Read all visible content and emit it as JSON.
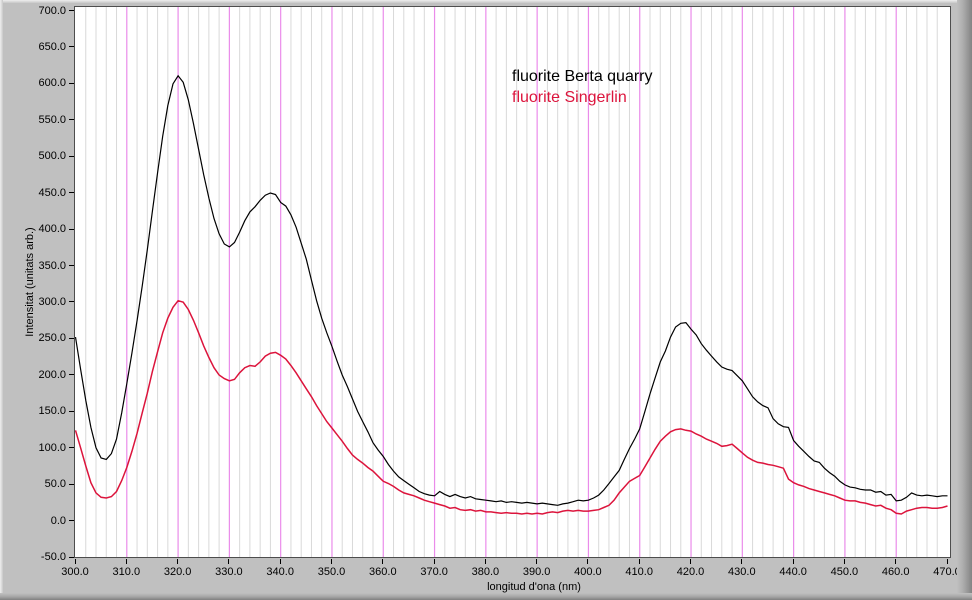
{
  "window": {
    "background_color": "#c0c0c0",
    "plot_background": "#ffffff"
  },
  "legend": {
    "items": [
      {
        "label": "fluorite Berta quarry",
        "color": "#000000"
      },
      {
        "label": "fluorite Singerlin",
        "color": "#dc143c"
      }
    ]
  },
  "axes": {
    "x": {
      "title": "longitud d'ona (nm)",
      "min": 300,
      "max": 470,
      "tick_step": 10,
      "tick_labels": [
        "300.0",
        "310.0",
        "320.0",
        "330.0",
        "340.0",
        "350.0",
        "360.0",
        "370.0",
        "380.0",
        "390.0",
        "400.0",
        "410.0",
        "420.0",
        "430.0",
        "440.0",
        "450.0",
        "460.0",
        "470.0"
      ]
    },
    "y": {
      "title": "Intensitat (unitats arb.)",
      "min": -50,
      "max": 700,
      "tick_step": 50,
      "tick_labels": [
        "700.0",
        "650.0",
        "600.0",
        "550.0",
        "500.0",
        "450.0",
        "400.0",
        "350.0",
        "300.0",
        "250.0",
        "200.0",
        "150.0",
        "100.0",
        "50.0",
        "0.0",
        "-50.0"
      ]
    }
  },
  "grid": {
    "major_color": "#ea8cea",
    "minor_color": "#d9d9d9",
    "major_step_nm": 10,
    "minor_step_nm": 2,
    "orientation": "vertical-only"
  },
  "chart_data": {
    "type": "line",
    "title": "",
    "xlabel": "longitud d'ona (nm)",
    "ylabel": "Intensitat (unitats arb.)",
    "xlim": [
      300,
      470
    ],
    "ylim": [
      -50,
      700
    ],
    "grid": "vertical gridlines only: magenta every 10 nm, light gray every 2 nm",
    "legend_position": "top-center-inside",
    "x_nm_start": 300,
    "x_nm_step": 1,
    "series": [
      {
        "name": "fluorite Berta quarry",
        "color": "#000000",
        "values": [
          252,
          208,
          165,
          128,
          100,
          86,
          84,
          92,
          112,
          148,
          188,
          230,
          275,
          322,
          372,
          425,
          478,
          528,
          570,
          600,
          611,
          602,
          578,
          545,
          510,
          475,
          443,
          415,
          394,
          380,
          376,
          382,
          396,
          412,
          424,
          431,
          440,
          447,
          450,
          448,
          437,
          432,
          420,
          403,
          381,
          359,
          330,
          302,
          278,
          258,
          239,
          219,
          200,
          184,
          167,
          150,
          136,
          122,
          107,
          97,
          88,
          77,
          68,
          60,
          55,
          50,
          45,
          40,
          37,
          35,
          34,
          40,
          36,
          33,
          36,
          33,
          31,
          33,
          30,
          29,
          28,
          27,
          26,
          27,
          25,
          26,
          25,
          24,
          25,
          24,
          23,
          24,
          23,
          22,
          21,
          23,
          24,
          26,
          28,
          27,
          28,
          31,
          35,
          42,
          51,
          60,
          69,
          84,
          99,
          112,
          126,
          150,
          174,
          196,
          218,
          233,
          252,
          266,
          271,
          272,
          263,
          255,
          243,
          234,
          226,
          218,
          211,
          208,
          206,
          199,
          192,
          181,
          170,
          163,
          158,
          155,
          140,
          133,
          129,
          128,
          110,
          102,
          95,
          88,
          82,
          80,
          72,
          66,
          61,
          54,
          49,
          46,
          45,
          43,
          42,
          42,
          39,
          40,
          35,
          36,
          27,
          28,
          32,
          38,
          35,
          34,
          35,
          34,
          33,
          34,
          34
        ]
      },
      {
        "name": "fluorite Singerlin",
        "color": "#dc143c",
        "values": [
          124,
          100,
          75,
          52,
          38,
          32,
          31,
          33,
          40,
          55,
          73,
          95,
          120,
          148,
          175,
          205,
          232,
          258,
          278,
          293,
          302,
          300,
          290,
          275,
          258,
          240,
          224,
          210,
          200,
          195,
          192,
          194,
          203,
          210,
          213,
          212,
          218,
          226,
          230,
          231,
          227,
          222,
          213,
          203,
          192,
          181,
          170,
          158,
          147,
          136,
          127,
          118,
          109,
          99,
          90,
          84,
          79,
          73,
          68,
          61,
          54,
          51,
          47,
          42,
          38,
          36,
          34,
          31,
          28,
          26,
          24,
          22,
          20,
          17,
          18,
          15,
          14,
          15,
          13,
          14,
          12,
          12,
          11,
          10,
          11,
          10,
          10,
          9,
          10,
          9,
          10,
          9,
          11,
          12,
          11,
          13,
          14,
          13,
          14,
          13,
          13,
          14,
          15,
          18,
          21,
          28,
          38,
          46,
          54,
          58,
          62,
          74,
          86,
          98,
          109,
          116,
          122,
          125,
          126,
          124,
          123,
          119,
          116,
          112,
          109,
          106,
          102,
          103,
          105,
          99,
          93,
          87,
          83,
          80,
          79,
          77,
          76,
          74,
          72,
          57,
          52,
          49,
          47,
          44,
          42,
          40,
          38,
          36,
          34,
          31,
          28,
          27,
          27,
          25,
          24,
          22,
          20,
          21,
          17,
          15,
          10,
          9,
          13,
          15,
          17,
          18,
          18,
          17,
          17,
          18,
          20
        ]
      }
    ]
  }
}
